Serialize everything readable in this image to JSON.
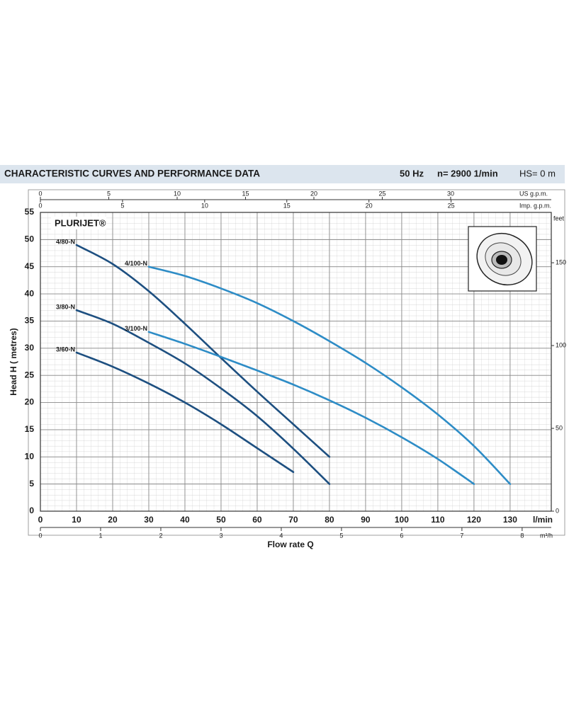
{
  "chart_data": {
    "type": "line",
    "title": "CHARACTERISTIC CURVES AND PERFORMANCE DATA",
    "conditions": [
      "50 Hz",
      "n= 2900  1/min",
      "HS= 0 m"
    ],
    "product": "PLURIJET®",
    "xlabel": "l/min",
    "xtitle": "Flow rate  Q",
    "ylabel": "Head H ( metres)",
    "xlim": [
      0,
      141.4
    ],
    "xticks": [
      0,
      10,
      20,
      30,
      40,
      50,
      60,
      70,
      80,
      90,
      100,
      110,
      120,
      130
    ],
    "ylim": [
      0,
      55
    ],
    "yticks": [
      0,
      5,
      10,
      15,
      20,
      25,
      30,
      35,
      40,
      45,
      50,
      55
    ],
    "y2label": "feet",
    "y2lim": [
      0,
      180.4
    ],
    "y2ticks": [
      0,
      50,
      100,
      150
    ],
    "top_axes": [
      {
        "label": "US g.p.m.",
        "xlim": [
          0,
          37.36
        ],
        "xticks": [
          0,
          5,
          10,
          15,
          20,
          25,
          30
        ]
      },
      {
        "label": "Imp. g.p.m.",
        "xlim": [
          0,
          31.1
        ],
        "xticks": [
          0,
          5,
          10,
          15,
          20,
          25
        ]
      }
    ],
    "bottom_axis2": {
      "label": "m³/h",
      "xlim": [
        0,
        8.484
      ],
      "xticks": [
        0,
        1,
        2,
        3,
        4,
        5,
        6,
        7,
        8
      ]
    },
    "grid": true,
    "series": [
      {
        "name": "4/80-N",
        "color": "#1d4f80",
        "x": [
          10,
          20,
          30,
          40,
          50,
          60,
          70,
          80
        ],
        "values": [
          49,
          45.5,
          40.5,
          34.5,
          28.2,
          22,
          16,
          10
        ]
      },
      {
        "name": "4/100-N",
        "color": "#2d8cc6",
        "x": [
          30,
          40,
          50,
          60,
          70,
          80,
          90,
          100,
          110,
          120,
          130
        ],
        "values": [
          45,
          43.3,
          41,
          38.3,
          35,
          31.3,
          27.3,
          22.8,
          17.8,
          12,
          5
        ]
      },
      {
        "name": "3/80-N",
        "color": "#1d4f80",
        "x": [
          10,
          20,
          30,
          40,
          50,
          60,
          70,
          80
        ],
        "values": [
          37,
          34.5,
          31,
          27.2,
          22.6,
          17.5,
          11.5,
          5
        ]
      },
      {
        "name": "3/100-N",
        "color": "#2d8cc6",
        "x": [
          30,
          40,
          50,
          60,
          70,
          80,
          90,
          100,
          110,
          120
        ],
        "values": [
          33,
          30.8,
          28.4,
          25.9,
          23.3,
          20.4,
          17.2,
          13.6,
          9.6,
          5
        ]
      },
      {
        "name": "3/60-N",
        "color": "#1d4f80",
        "x": [
          10,
          20,
          30,
          40,
          50,
          60,
          70
        ],
        "values": [
          29.2,
          26.6,
          23.5,
          20,
          16,
          11.6,
          7.2
        ]
      }
    ]
  }
}
